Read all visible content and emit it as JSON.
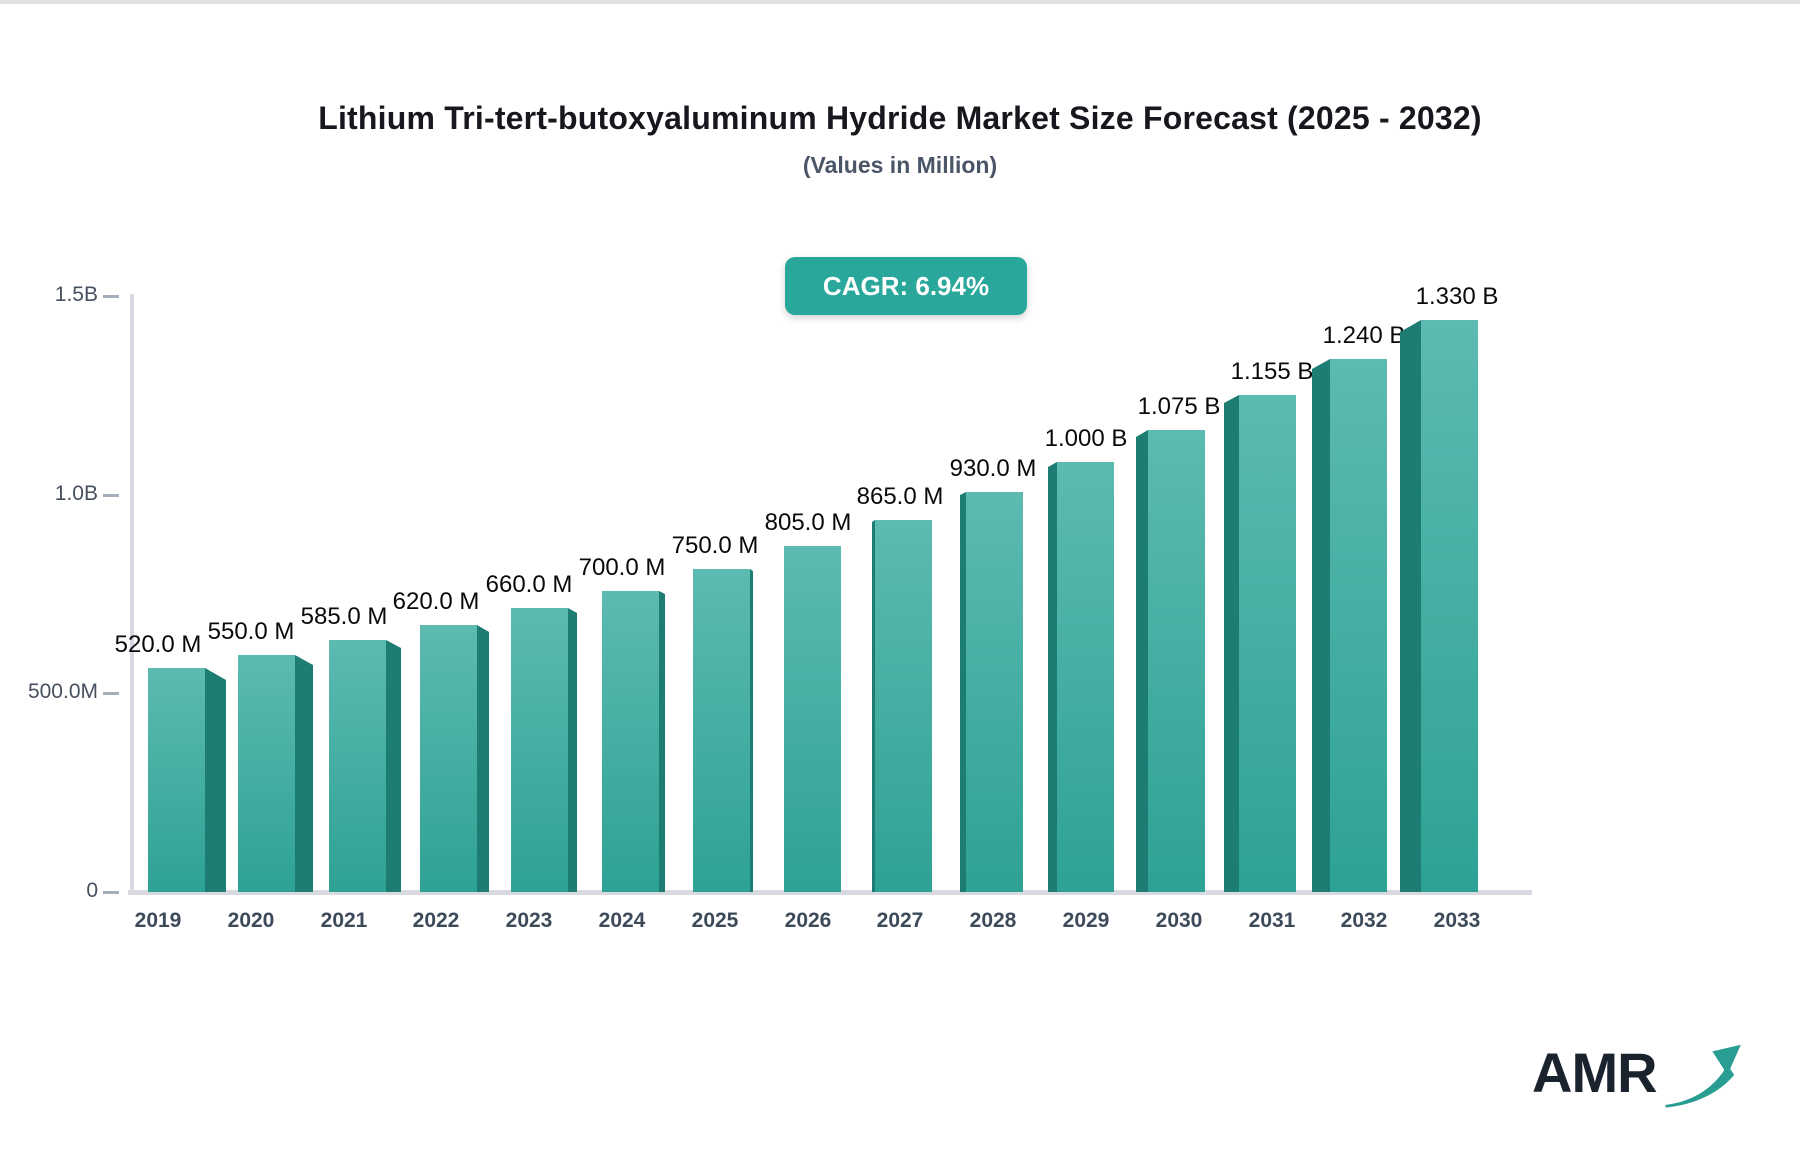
{
  "header": {
    "cagr_badge": "CAGR: 6.94%"
  },
  "chart_data": {
    "type": "bar",
    "title": "Lithium Tri-tert-butoxyaluminum Hydride Market Size Forecast (2025 - 2032)",
    "subtitle": "(Values in Million)",
    "categories": [
      "2019",
      "2020",
      "2021",
      "2022",
      "2023",
      "2024",
      "2025",
      "2026",
      "2027",
      "2028",
      "2029",
      "2030",
      "2031",
      "2032",
      "2033"
    ],
    "values": [
      520,
      550,
      585,
      620,
      660,
      700,
      750,
      805,
      865,
      930,
      1000,
      1075,
      1155,
      1240,
      1330
    ],
    "value_labels": [
      "520.0 M",
      "550.0 M",
      "585.0 M",
      "620.0 M",
      "660.0 M",
      "700.0 M",
      "750.0 M",
      "805.0 M",
      "865.0 M",
      "930.0 M",
      "1.000 B",
      "1.075 B",
      "1.155 B",
      "1.240 B",
      "1.330 B"
    ],
    "units": "Million",
    "xlabel": "",
    "ylabel": "",
    "ylim": [
      0,
      1500
    ],
    "grid": false,
    "legend": false,
    "y_ticks": [
      {
        "label": "1.5B",
        "value": 1500
      },
      {
        "label": "1.0B",
        "value": 1000
      },
      {
        "label": "500.0M",
        "value": 500
      },
      {
        "label": "0",
        "value": 0
      }
    ],
    "colors": {
      "bar_face_top": "#5dbab0",
      "bar_face_bottom": "#2da294",
      "bar_side": "#1e7d73",
      "badge": "#2aa79b",
      "axis": "#d9d9e1",
      "value_text": "#0a0a0a",
      "tick_text": "#47505e",
      "logo_text": "#1a222e",
      "logo_arrow": "#2a9d93"
    }
  },
  "branding": {
    "logo_text": "AMR"
  }
}
